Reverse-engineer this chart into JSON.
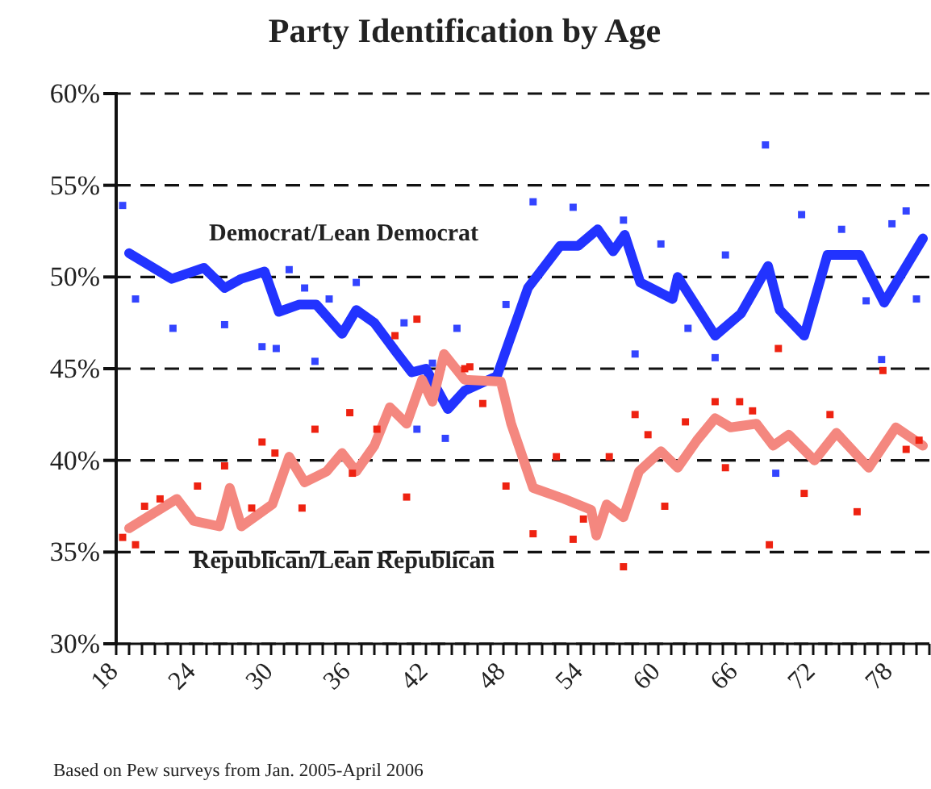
{
  "chart_data": {
    "type": "line",
    "title": "Party Identification by Age",
    "annotations": [
      "Based on Pew surveys from Jan. 2005-April 2006"
    ],
    "xlim": [
      18,
      81
    ],
    "ylim": [
      30,
      60
    ],
    "xticks": [
      {
        "value": 18,
        "label": "18"
      },
      {
        "value": 19,
        "label": null
      },
      {
        "value": 20,
        "label": null
      },
      {
        "value": 21,
        "label": null
      },
      {
        "value": 22,
        "label": null
      },
      {
        "value": 23,
        "label": null
      },
      {
        "value": 24,
        "label": "24"
      },
      {
        "value": 25,
        "label": null
      },
      {
        "value": 26,
        "label": null
      },
      {
        "value": 27,
        "label": null
      },
      {
        "value": 28,
        "label": null
      },
      {
        "value": 29,
        "label": null
      },
      {
        "value": 30,
        "label": "30"
      },
      {
        "value": 31,
        "label": null
      },
      {
        "value": 32,
        "label": null
      },
      {
        "value": 33,
        "label": null
      },
      {
        "value": 34,
        "label": null
      },
      {
        "value": 35,
        "label": null
      },
      {
        "value": 36,
        "label": "36"
      },
      {
        "value": 37,
        "label": null
      },
      {
        "value": 38,
        "label": null
      },
      {
        "value": 39,
        "label": null
      },
      {
        "value": 40,
        "label": null
      },
      {
        "value": 41,
        "label": null
      },
      {
        "value": 42,
        "label": "42"
      },
      {
        "value": 43,
        "label": null
      },
      {
        "value": 44,
        "label": null
      },
      {
        "value": 45,
        "label": null
      },
      {
        "value": 46,
        "label": null
      },
      {
        "value": 47,
        "label": null
      },
      {
        "value": 48,
        "label": "48"
      },
      {
        "value": 49,
        "label": null
      },
      {
        "value": 50,
        "label": null
      },
      {
        "value": 51,
        "label": null
      },
      {
        "value": 52,
        "label": null
      },
      {
        "value": 53,
        "label": null
      },
      {
        "value": 54,
        "label": "54"
      },
      {
        "value": 55,
        "label": null
      },
      {
        "value": 56,
        "label": null
      },
      {
        "value": 57,
        "label": null
      },
      {
        "value": 58,
        "label": null
      },
      {
        "value": 59,
        "label": null
      },
      {
        "value": 60,
        "label": "60"
      },
      {
        "value": 61,
        "label": null
      },
      {
        "value": 62,
        "label": null
      },
      {
        "value": 63,
        "label": null
      },
      {
        "value": 64,
        "label": null
      },
      {
        "value": 65,
        "label": null
      },
      {
        "value": 66,
        "label": "66"
      },
      {
        "value": 67,
        "label": null
      },
      {
        "value": 68,
        "label": null
      },
      {
        "value": 69,
        "label": null
      },
      {
        "value": 70,
        "label": null
      },
      {
        "value": 71,
        "label": null
      },
      {
        "value": 72,
        "label": "72"
      },
      {
        "value": 73,
        "label": null
      },
      {
        "value": 74,
        "label": null
      },
      {
        "value": 75,
        "label": null
      },
      {
        "value": 76,
        "label": null
      },
      {
        "value": 77,
        "label": null
      },
      {
        "value": 78,
        "label": "78"
      },
      {
        "value": 79,
        "label": null
      },
      {
        "value": 80,
        "label": null
      },
      {
        "value": 81,
        "label": null
      }
    ],
    "yticks": [
      {
        "value": 30,
        "label": "30%"
      },
      {
        "value": 35,
        "label": "35%"
      },
      {
        "value": 40,
        "label": "40%"
      },
      {
        "value": 45,
        "label": "45%"
      },
      {
        "value": 50,
        "label": "50%"
      },
      {
        "value": 55,
        "label": "55%"
      },
      {
        "value": 60,
        "label": "60%"
      }
    ],
    "grid": "y",
    "series": [
      {
        "type": "scatter",
        "color": "#3344ff",
        "marker": "square",
        "x": [
          18.5,
          19.5,
          22.4,
          26.4,
          29.3,
          30.4,
          31.4,
          32.6,
          33.4,
          34.5,
          36.6,
          40.3,
          41.3,
          42.5,
          43.5,
          44.4,
          48.2,
          50.3,
          53.4,
          57.3,
          58.2,
          60.2,
          62.3,
          64.4,
          65.2,
          68.3,
          69.1,
          71.1,
          74.2,
          76.1,
          77.3,
          78.1,
          79.2,
          80
        ],
        "values": [
          53.9,
          48.8,
          47.2,
          47.4,
          46.2,
          46.1,
          50.4,
          49.4,
          45.4,
          48.8,
          49.7,
          47.5,
          41.7,
          45.3,
          41.2,
          47.2,
          48.5,
          54.1,
          53.8,
          53.1,
          45.8,
          51.8,
          47.2,
          45.6,
          51.2,
          57.2,
          39.3,
          53.4,
          52.6,
          48.7,
          45.5,
          52.9,
          53.6,
          48.8
        ]
      },
      {
        "type": "scatter",
        "color": "#ee2211",
        "marker": "square",
        "x": [
          18.5,
          19.5,
          20.2,
          21.4,
          24.3,
          26.4,
          28.5,
          29.3,
          30.3,
          32.4,
          33.4,
          36.1,
          36.3,
          38.2,
          39.6,
          40.5,
          41.3,
          45,
          45.4,
          46.4,
          48.2,
          50.3,
          52.1,
          53.4,
          54.2,
          56.2,
          57.3,
          58.2,
          59.2,
          60.5,
          62.1,
          64.4,
          65.2,
          66.3,
          67.3,
          68.6,
          69.3,
          71.3,
          73.3,
          75.4,
          77.4,
          79.2,
          80.2
        ],
        "values": [
          35.8,
          35.4,
          37.5,
          37.9,
          38.6,
          39.7,
          37.4,
          41,
          40.4,
          37.4,
          41.7,
          42.6,
          39.3,
          41.7,
          46.8,
          38,
          47.7,
          45,
          45.1,
          43.1,
          38.6,
          36,
          40.2,
          35.7,
          36.8,
          40.2,
          34.2,
          42.5,
          41.4,
          37.5,
          42.1,
          43.2,
          39.6,
          43.2,
          42.7,
          35.4,
          46.1,
          38.2,
          42.5,
          37.2,
          44.9,
          40.6,
          41.1
        ]
      },
      {
        "name": "Democrat/Lean Democrat",
        "color": "#2233ff",
        "x": [
          19,
          22.3,
          24.8,
          26.4,
          27.7,
          29.5,
          30.6,
          32.2,
          33.5,
          35.5,
          36.6,
          38,
          39.7,
          40.9,
          42,
          43.7,
          45,
          47.5,
          49.9,
          52.4,
          53.8,
          55.3,
          56.5,
          57.4,
          58.6,
          61.1,
          61.5,
          64.4,
          66.4,
          68.5,
          69.4,
          71.3,
          73.1,
          75.6,
          77.5,
          80.5
        ],
        "values": [
          51.3,
          49.9,
          50.5,
          49.4,
          49.9,
          50.3,
          48.1,
          48.5,
          48.5,
          46.9,
          48.2,
          47.5,
          45.9,
          44.8,
          45,
          42.8,
          43.8,
          44.6,
          49.4,
          51.7,
          51.7,
          52.6,
          51.4,
          52.3,
          49.7,
          48.8,
          50,
          46.8,
          48,
          50.6,
          48.2,
          46.8,
          51.2,
          51.2,
          48.6,
          52.1
        ]
      },
      {
        "name": "Republican/Lean Republican",
        "color": "#f4877f",
        "x": [
          19,
          22.7,
          24,
          26,
          26.8,
          27.7,
          30.1,
          31.4,
          32.6,
          34.3,
          35.5,
          36.6,
          38,
          39.2,
          40.5,
          41.7,
          42.5,
          43.4,
          45,
          47.8,
          48.6,
          50.3,
          52.7,
          54.8,
          55.2,
          56,
          57.3,
          58.5,
          60.2,
          61.5,
          63,
          64.4,
          65.6,
          67.6,
          68.9,
          70.1,
          72.1,
          73.8,
          76.3,
          78.4,
          80.5
        ],
        "values": [
          36.3,
          37.9,
          36.7,
          36.4,
          38.5,
          36.4,
          37.6,
          40.2,
          38.8,
          39.4,
          40.4,
          39.4,
          40.8,
          42.9,
          42,
          44.4,
          43.2,
          45.8,
          44.4,
          44.3,
          42,
          38.5,
          37.9,
          37.3,
          35.9,
          37.6,
          36.9,
          39.4,
          40.5,
          39.6,
          41.1,
          42.3,
          41.8,
          42,
          40.8,
          41.4,
          40,
          41.5,
          39.6,
          41.8,
          40.8
        ]
      }
    ]
  }
}
